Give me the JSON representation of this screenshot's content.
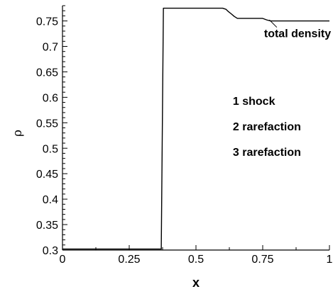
{
  "chart_data": {
    "type": "line",
    "title": "",
    "xlabel": "x",
    "ylabel": "ρ",
    "xlim": [
      0,
      1
    ],
    "ylim": [
      0.3,
      0.78
    ],
    "x_ticks": [
      {
        "value": 0,
        "label": "0"
      },
      {
        "value": 0.25,
        "label": "0.25"
      },
      {
        "value": 0.5,
        "label": "0.5"
      },
      {
        "value": 0.75,
        "label": "0.75"
      },
      {
        "value": 1,
        "label": "1"
      }
    ],
    "y_ticks": [
      {
        "value": 0.3,
        "label": "0.3"
      },
      {
        "value": 0.35,
        "label": "0.35"
      },
      {
        "value": 0.4,
        "label": "0.4"
      },
      {
        "value": 0.45,
        "label": "0.45"
      },
      {
        "value": 0.5,
        "label": "0.5"
      },
      {
        "value": 0.55,
        "label": "0.55"
      },
      {
        "value": 0.6,
        "label": "0.6"
      },
      {
        "value": 0.65,
        "label": "0.65"
      },
      {
        "value": 0.7,
        "label": "0.7"
      },
      {
        "value": 0.75,
        "label": "0.75"
      }
    ],
    "grid": false,
    "series": [
      {
        "x": [
          0,
          0.37,
          0.378,
          0.6,
          0.612,
          0.62,
          0.632,
          0.643,
          0.655,
          0.75,
          0.765,
          0.78,
          1.0
        ],
        "y": [
          0.302,
          0.302,
          0.775,
          0.775,
          0.773,
          0.769,
          0.764,
          0.759,
          0.755,
          0.755,
          0.752,
          0.75,
          0.75
        ]
      }
    ],
    "annotations": [
      {
        "text": "total density",
        "x": 0.755,
        "y": 0.718,
        "pointer_to": [
          0.775,
          0.752
        ]
      },
      {
        "text": "1 shock",
        "x": 0.638,
        "y": 0.585
      },
      {
        "text": "2 rarefaction",
        "x": 0.638,
        "y": 0.535
      },
      {
        "text": "3 rarefaction",
        "x": 0.638,
        "y": 0.485
      }
    ]
  },
  "colors": {
    "line": "#000000",
    "axis": "#000000",
    "background": "#ffffff"
  }
}
